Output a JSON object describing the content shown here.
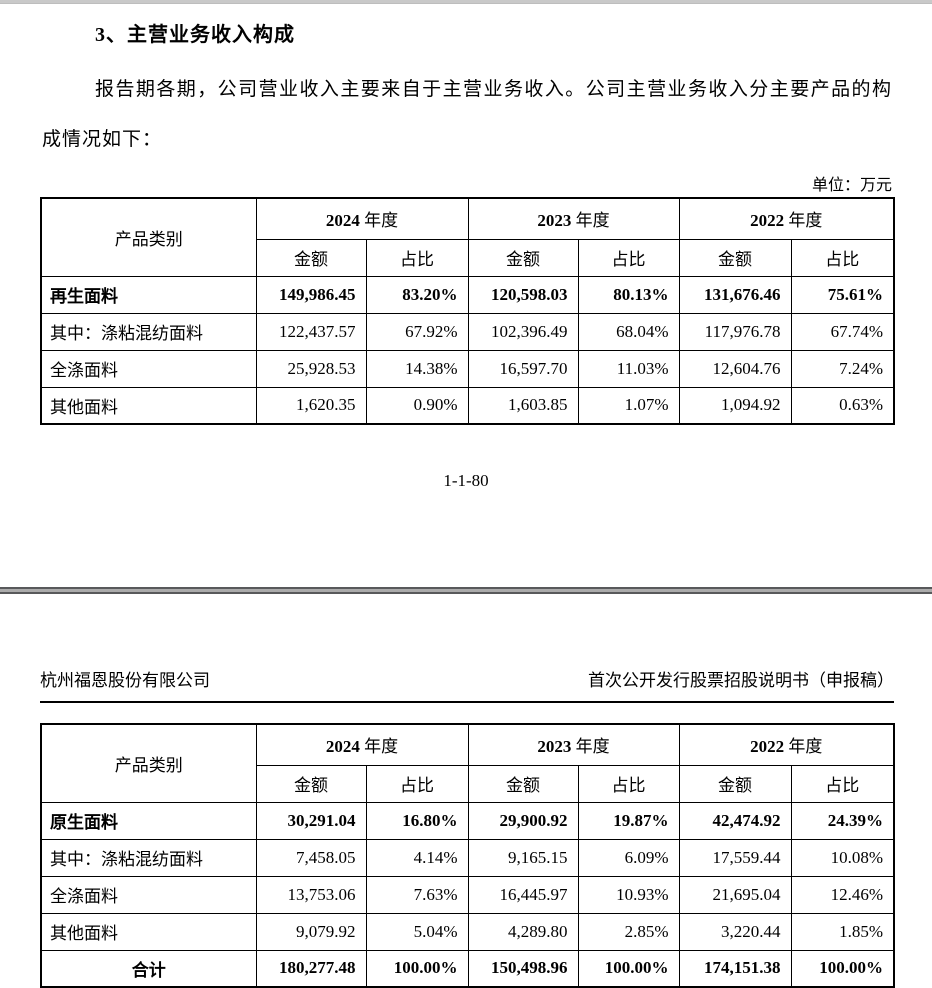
{
  "page": {
    "section_heading": "3、主营业务收入构成",
    "intro_paragraph": "报告期各期，公司营业收入主要来自于主营业务收入。公司主营业务收入分主要产品的构成情况如下：",
    "unit_label": "单位：万元",
    "page_number": "1-1-80",
    "next_page_header": {
      "company": "杭州福恩股份有限公司",
      "doc_title": "首次公开发行股票招股说明书（申报稿）"
    }
  },
  "table_header": {
    "product_col": "产品类别",
    "years": [
      "2024",
      "2023",
      "2022"
    ],
    "year_suffix": "年度",
    "sub_cols": [
      "金额",
      "占比"
    ]
  },
  "tables": [
    {
      "name": "main-revenue-table-page1",
      "rows": [
        {
          "label": "再生面料",
          "bold": true,
          "center": false,
          "values": [
            "149,986.45",
            "83.20%",
            "120,598.03",
            "80.13%",
            "131,676.46",
            "75.61%"
          ]
        },
        {
          "label": "其中：涤粘混纺面料",
          "bold": false,
          "center": false,
          "values": [
            "122,437.57",
            "67.92%",
            "102,396.49",
            "68.04%",
            "117,976.78",
            "67.74%"
          ]
        },
        {
          "label": "全涤面料",
          "bold": false,
          "center": false,
          "values": [
            "25,928.53",
            "14.38%",
            "16,597.70",
            "11.03%",
            "12,604.76",
            "7.24%"
          ]
        },
        {
          "label": "其他面料",
          "bold": false,
          "center": false,
          "values": [
            "1,620.35",
            "0.90%",
            "1,603.85",
            "1.07%",
            "1,094.92",
            "0.63%"
          ]
        }
      ]
    },
    {
      "name": "main-revenue-table-page2",
      "rows": [
        {
          "label": "原生面料",
          "bold": true,
          "center": false,
          "values": [
            "30,291.04",
            "16.80%",
            "29,900.92",
            "19.87%",
            "42,474.92",
            "24.39%"
          ]
        },
        {
          "label": "其中：涤粘混纺面料",
          "bold": false,
          "center": false,
          "values": [
            "7,458.05",
            "4.14%",
            "9,165.15",
            "6.09%",
            "17,559.44",
            "10.08%"
          ]
        },
        {
          "label": "全涤面料",
          "bold": false,
          "center": false,
          "values": [
            "13,753.06",
            "7.63%",
            "16,445.97",
            "10.93%",
            "21,695.04",
            "12.46%"
          ]
        },
        {
          "label": "其他面料",
          "bold": false,
          "center": false,
          "values": [
            "9,079.92",
            "5.04%",
            "4,289.80",
            "2.85%",
            "3,220.44",
            "1.85%"
          ]
        },
        {
          "label": "合计",
          "bold": true,
          "center": true,
          "values": [
            "180,277.48",
            "100.00%",
            "150,498.96",
            "100.00%",
            "174,151.38",
            "100.00%"
          ]
        }
      ]
    }
  ]
}
